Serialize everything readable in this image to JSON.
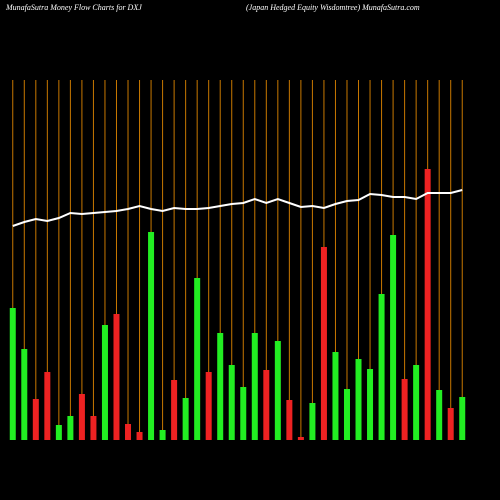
{
  "chart_data": {
    "type": "bar",
    "title": "MunafaSutra  Money  Flow  Charts for DXJ",
    "subtitle": "(Japan  Hedged Equity Wisdomtree) MunafaSutra.com",
    "categories": [
      null,
      null,
      null,
      null,
      null,
      null,
      null,
      null,
      null,
      null,
      null,
      null,
      null,
      null,
      null,
      null,
      null,
      null,
      null,
      null,
      null,
      null,
      null,
      null,
      null,
      null,
      null,
      null,
      null,
      null,
      null,
      null,
      null,
      null,
      null,
      null,
      null,
      null,
      null,
      null
    ],
    "values": [
      132,
      91,
      41,
      68,
      15,
      24,
      46,
      24,
      115,
      126,
      16,
      8,
      208,
      10,
      60,
      42,
      162,
      68,
      107,
      75,
      53,
      107,
      70,
      99,
      40,
      3,
      37,
      193,
      88,
      51,
      81,
      71,
      146,
      205,
      61,
      75,
      271,
      50,
      32,
      43
    ],
    "bar_colors": [
      "#22ee22",
      "#22ee22",
      "#ee2222",
      "#ee2222",
      "#22ee22",
      "#22ee22",
      "#ee2222",
      "#ee2222",
      "#22ee22",
      "#ee2222",
      "#ee2222",
      "#ee2222",
      "#22ee22",
      "#22ee22",
      "#ee2222",
      "#22ee22",
      "#22ee22",
      "#ee2222",
      "#22ee22",
      "#22ee22",
      "#22ee22",
      "#22ee22",
      "#ee2222",
      "#22ee22",
      "#ee2222",
      "#ee2222",
      "#22ee22",
      "#ee2222",
      "#22ee22",
      "#22ee22",
      "#22ee22",
      "#22ee22",
      "#22ee22",
      "#22ee22",
      "#ee2222",
      "#22ee22",
      "#ee2222",
      "#22ee22",
      "#ee2222",
      "#22ee22"
    ],
    "line": {
      "color": "#ffffff",
      "values": [
        214,
        218,
        221,
        219,
        222,
        227,
        226,
        227,
        228,
        229,
        231,
        234,
        231,
        229,
        232,
        231,
        231,
        232,
        234,
        236,
        237,
        241,
        237,
        241,
        237,
        233,
        234,
        232,
        236,
        239,
        240,
        246,
        245,
        243,
        243,
        241,
        247,
        247,
        247,
        250
      ]
    },
    "ylim": [
      0,
      360
    ],
    "grid_color": "#c87800"
  }
}
